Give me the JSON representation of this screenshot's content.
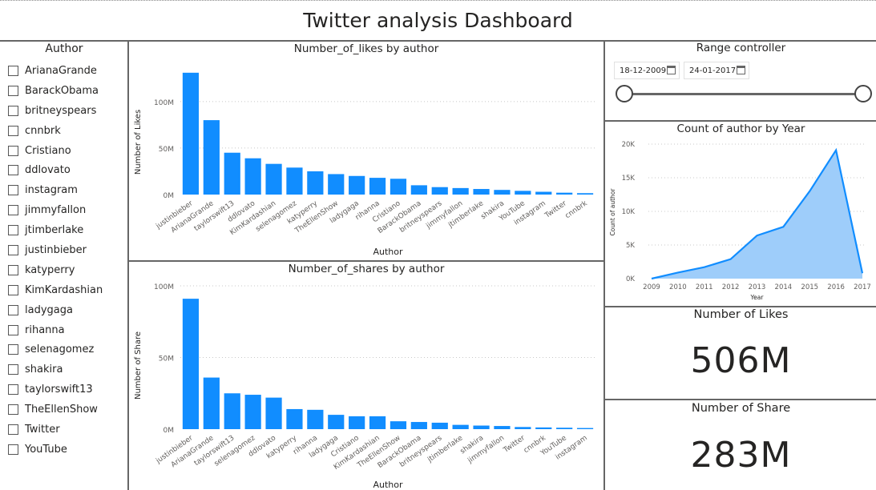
{
  "page_title": "Twitter analysis Dashboard",
  "slicer": {
    "title": "Author",
    "items": [
      "ArianaGrande",
      "BarackObama",
      "britneyspears",
      "cnnbrk",
      "Cristiano",
      "ddlovato",
      "instagram",
      "jimmyfallon",
      "jtimberlake",
      "justinbieber",
      "katyperry",
      "KimKardashian",
      "ladygaga",
      "rihanna",
      "selenagomez",
      "shakira",
      "taylorswift13",
      "TheEllenShow",
      "Twitter",
      "YouTube"
    ]
  },
  "range": {
    "title": "Range controller",
    "start_date": "18-12-2009",
    "end_date": "24-01-2017"
  },
  "kpis": {
    "likes_title": "Number of Likes",
    "likes_value": "506M",
    "shares_title": "Number of Share",
    "shares_value": "283M"
  },
  "colors": {
    "bar": "#118dff",
    "area_fill": "#9ecdfa",
    "area_line": "#118dff"
  },
  "chart_data": [
    {
      "type": "bar",
      "title": "Number_of_likes by author",
      "xlabel": "Author",
      "ylabel": "Number of Likes",
      "ylim": [
        0,
        130
      ],
      "yticks": [
        0,
        50,
        100
      ],
      "ytick_labels": [
        "0M",
        "50M",
        "100M"
      ],
      "categories": [
        "justinbieber",
        "ArianaGrande",
        "taylorswift13",
        "ddlovato",
        "KimKardashian",
        "selenagomez",
        "katyperry",
        "TheEllenShow",
        "ladygaga",
        "rihanna",
        "Cristiano",
        "BarackObama",
        "britneyspears",
        "jimmyfallon",
        "jtimberlake",
        "shakira",
        "YouTube",
        "instagram",
        "Twitter",
        "cnnbrk"
      ],
      "values": [
        131,
        80,
        45,
        39,
        33,
        29,
        25,
        22,
        20,
        18,
        17,
        10,
        8,
        7,
        6,
        5,
        4,
        3,
        2,
        1.5
      ],
      "grid": true
    },
    {
      "type": "bar",
      "title": "Number_of_shares by author",
      "xlabel": "Author",
      "ylabel": "Number of Share",
      "ylim": [
        0,
        100
      ],
      "yticks": [
        0,
        50,
        100
      ],
      "ytick_labels": [
        "0M",
        "50M",
        "100M"
      ],
      "categories": [
        "justinbieber",
        "ArianaGrande",
        "taylorswift13",
        "selenagomez",
        "ddlovato",
        "katyperry",
        "rihanna",
        "ladygaga",
        "Cristiano",
        "KimKardashian",
        "TheEllenShow",
        "BarackObama",
        "britneyspears",
        "jtimberlake",
        "shakira",
        "jimmyfallon",
        "Twitter",
        "cnnbrk",
        "YouTube",
        "instagram"
      ],
      "values": [
        91,
        36,
        25,
        24,
        22,
        14,
        13.5,
        10,
        9,
        9,
        5.5,
        5,
        4.5,
        3,
        2.5,
        2.2,
        1.5,
        1.2,
        1,
        0.8
      ],
      "grid": true
    },
    {
      "type": "area",
      "title": "Count of author by Year",
      "xlabel": "Year",
      "ylabel": "Count of author",
      "x": [
        "2009",
        "2010",
        "2011",
        "2012",
        "2013",
        "2014",
        "2015",
        "2016",
        "2017"
      ],
      "values": [
        0,
        900,
        1700,
        2900,
        6400,
        7700,
        13000,
        19100,
        800
      ],
      "ylim": [
        0,
        20000
      ],
      "yticks": [
        0,
        5000,
        10000,
        15000,
        20000
      ],
      "ytick_labels": [
        "0K",
        "5K",
        "10K",
        "15K",
        "20K"
      ],
      "grid": true
    }
  ]
}
